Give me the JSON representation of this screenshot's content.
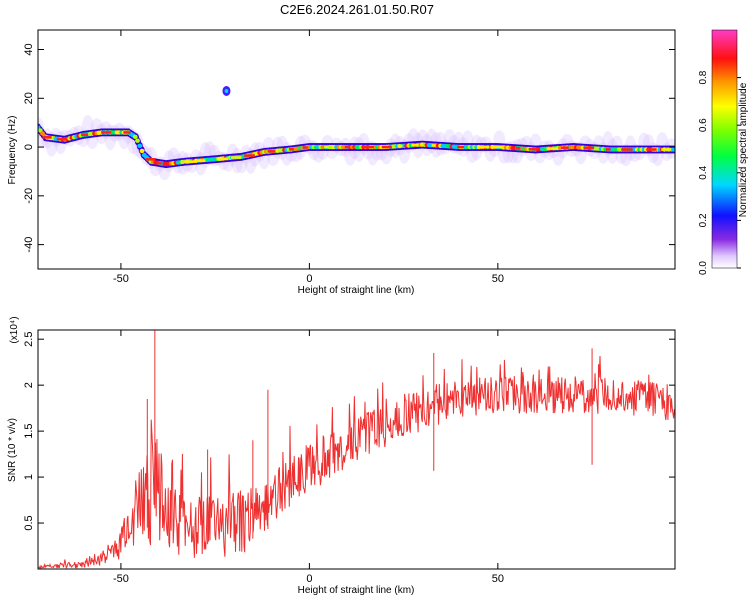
{
  "title": "C2E6.2024.261.01.50.R07",
  "colors": {
    "snr_line": "#ee3030",
    "axis": "#000000",
    "background": "#ffffff"
  },
  "chart_data": [
    {
      "type": "heatmap",
      "xlabel": "Height of straight line (km)",
      "ylabel": "Frequency (Hz)",
      "xlim": [
        -72,
        97
      ],
      "ylim": [
        -50,
        48
      ],
      "xticks": [
        -50,
        0,
        50
      ],
      "yticks": [
        -40,
        -20,
        0,
        20,
        40
      ],
      "colorbar": {
        "label": "Normalized spectral amplitude",
        "range": [
          0.0,
          1.0
        ],
        "ticks": [
          0.0,
          0.2,
          0.4,
          0.6,
          0.8
        ],
        "colormap": "rainbow (white-purple-blue-cyan-green-yellow-orange-red-magenta)"
      },
      "ridge": [
        {
          "x": -72,
          "y": 8
        },
        {
          "x": -70,
          "y": 4
        },
        {
          "x": -65,
          "y": 3
        },
        {
          "x": -60,
          "y": 5
        },
        {
          "x": -55,
          "y": 6
        },
        {
          "x": -48,
          "y": 6
        },
        {
          "x": -46,
          "y": 4
        },
        {
          "x": -44,
          "y": -3
        },
        {
          "x": -42,
          "y": -6
        },
        {
          "x": -38,
          "y": -7
        },
        {
          "x": -33,
          "y": -6
        },
        {
          "x": -25,
          "y": -5
        },
        {
          "x": -18,
          "y": -4
        },
        {
          "x": -12,
          "y": -2
        },
        {
          "x": -5,
          "y": -1
        },
        {
          "x": 0,
          "y": 0
        },
        {
          "x": 10,
          "y": 0
        },
        {
          "x": 20,
          "y": 0
        },
        {
          "x": 30,
          "y": 1
        },
        {
          "x": 40,
          "y": 0
        },
        {
          "x": 50,
          "y": 0
        },
        {
          "x": 60,
          "y": -1
        },
        {
          "x": 70,
          "y": 0
        },
        {
          "x": 80,
          "y": -1
        },
        {
          "x": 90,
          "y": -1
        },
        {
          "x": 97,
          "y": -1
        }
      ],
      "isolated_spots": [
        {
          "x": -22,
          "y": 23
        }
      ]
    },
    {
      "type": "line",
      "xlabel": "Height of straight line (km)",
      "ylabel": "SNR (10 * v/v)",
      "scale_label": "(x10⁴)",
      "xlim": [
        -72,
        97
      ],
      "ylim": [
        0,
        2.6
      ],
      "xticks": [
        -50,
        0,
        50
      ],
      "yticks": [
        0.5,
        1.0,
        1.5,
        2.0,
        2.5
      ],
      "envelope_x": [
        -72,
        -65,
        -60,
        -55,
        -52,
        -50,
        -47,
        -44,
        -42,
        -41,
        -40,
        -38,
        -35,
        -30,
        -25,
        -20,
        -15,
        -12,
        -10,
        -5,
        0,
        5,
        10,
        15,
        20,
        25,
        30,
        35,
        40,
        50,
        60,
        70,
        80,
        90,
        97
      ],
      "envelope_mean": [
        0.02,
        0.04,
        0.06,
        0.12,
        0.2,
        0.3,
        0.55,
        0.7,
        0.8,
        1.1,
        0.9,
        0.6,
        0.5,
        0.45,
        0.45,
        0.5,
        0.55,
        0.65,
        0.8,
        0.95,
        1.1,
        1.2,
        1.35,
        1.45,
        1.55,
        1.65,
        1.75,
        1.8,
        1.85,
        1.9,
        1.88,
        1.9,
        1.88,
        1.85,
        1.8
      ],
      "envelope_spread": [
        0.02,
        0.03,
        0.05,
        0.08,
        0.12,
        0.2,
        0.35,
        0.5,
        0.6,
        0.8,
        0.6,
        0.4,
        0.35,
        0.35,
        0.35,
        0.35,
        0.35,
        0.3,
        0.3,
        0.28,
        0.25,
        0.25,
        0.25,
        0.25,
        0.25,
        0.25,
        0.25,
        0.22,
        0.22,
        0.2,
        0.2,
        0.2,
        0.2,
        0.2,
        0.2
      ],
      "peaks": [
        {
          "x": -41,
          "y": 2.6
        },
        {
          "x": -43,
          "y": 1.85
        },
        {
          "x": -11,
          "y": 1.95
        },
        {
          "x": -27,
          "y": 1.3
        },
        {
          "x": -15,
          "y": 1.4
        },
        {
          "x": 33,
          "y": 2.35
        },
        {
          "x": 75,
          "y": 2.4
        }
      ]
    }
  ]
}
